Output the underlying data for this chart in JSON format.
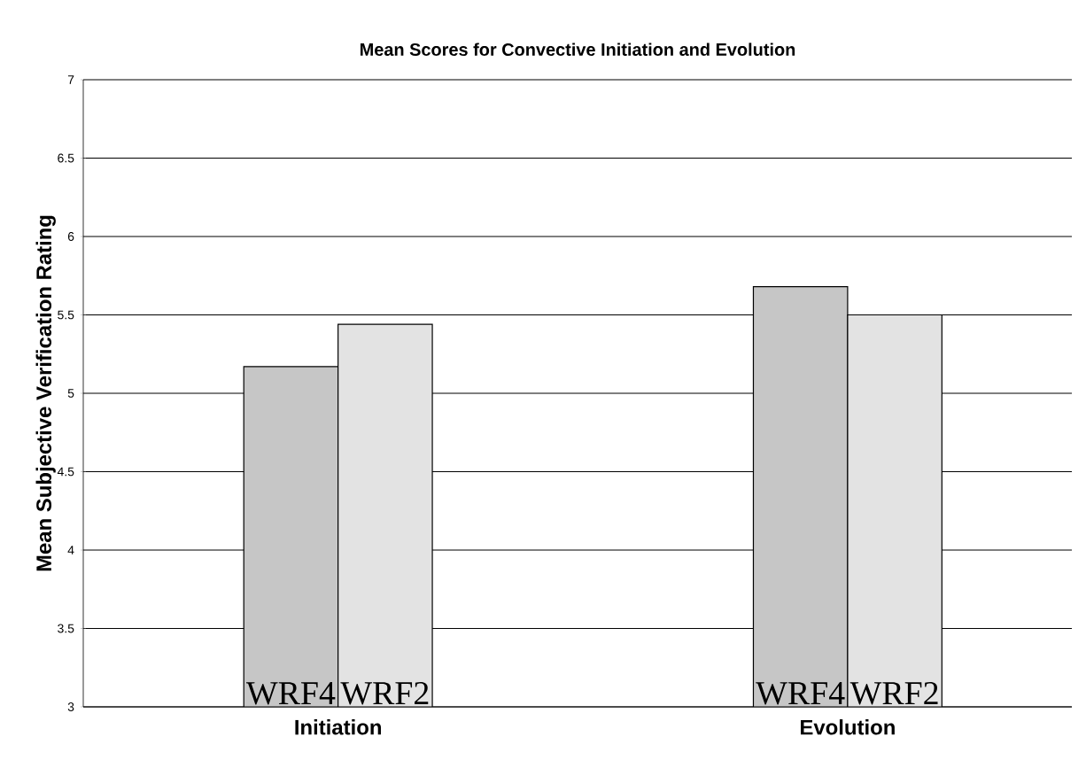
{
  "chart_data": {
    "type": "bar",
    "title": "Mean Scores for Convective Initiation and Evolution",
    "ylabel": "Mean Subjective Verification Rating",
    "categories": [
      "Initiation",
      "Evolution"
    ],
    "series": [
      {
        "name": "WRF4",
        "color": "#c6c6c6",
        "values": [
          5.17,
          5.68
        ]
      },
      {
        "name": "WRF2",
        "color": "#e3e3e3",
        "values": [
          5.44,
          5.5
        ]
      }
    ],
    "ylim": [
      3,
      7
    ],
    "yticks": [
      3,
      3.5,
      4,
      4.5,
      5,
      5.5,
      6,
      6.5,
      7
    ],
    "grid": "y"
  }
}
